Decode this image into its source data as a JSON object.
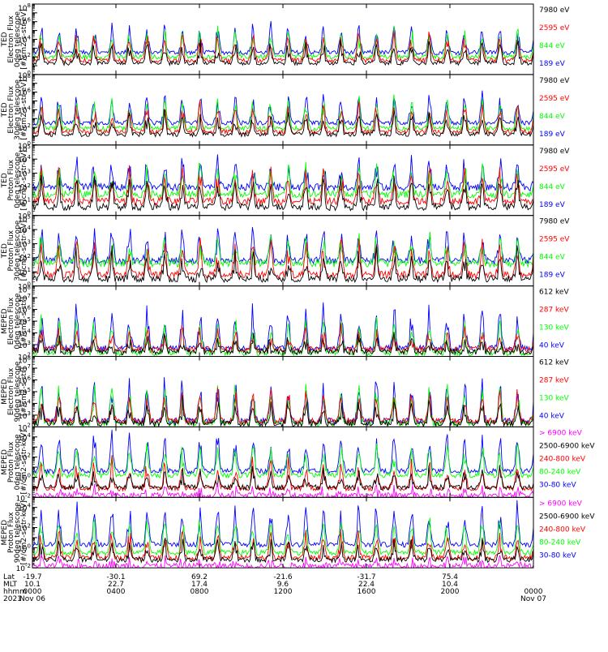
{
  "colors": {
    "black": "#000000",
    "red": "#ff0000",
    "green": "#00ff00",
    "blue": "#0000ff",
    "magenta": "#ff00ff"
  },
  "chart_data": [
    {
      "type": "line",
      "ylabel": [
        "TED",
        "Electron Flux",
        "0deg telescope",
        "[#/cm2-s-str-eV]"
      ],
      "yscale": "log",
      "ylim": [
        1,
        100000000
      ],
      "ytick_labels": [
        "10^0",
        "10^2",
        "10^4",
        "10^6"
      ],
      "ytick_exponents": [
        0,
        2,
        4,
        6
      ],
      "ytop": "10^8",
      "series": [
        {
          "name": "7980 eV",
          "color": "#000000"
        },
        {
          "name": "2595 eV",
          "color": "#ff0000"
        },
        {
          "name": "844 eV",
          "color": "#00ff00"
        },
        {
          "name": "189 eV",
          "color": "#0000ff"
        }
      ],
      "base_log": [
        1.3,
        1.6,
        2.0,
        2.5
      ],
      "peak_log": [
        3.5,
        4.5,
        5.0,
        5.5
      ]
    },
    {
      "type": "line",
      "ylabel": [
        "TED",
        "Electron Flux",
        "30deg telescope",
        "[#/cm2-s-str-eV]"
      ],
      "yscale": "log",
      "ylim": [
        1,
        100000000
      ],
      "ytick_labels": [
        "10^0",
        "10^2",
        "10^4",
        "10^6"
      ],
      "ytick_exponents": [
        0,
        2,
        4,
        6
      ],
      "ytop": "10^8",
      "series": [
        {
          "name": "7980 eV",
          "color": "#000000"
        },
        {
          "name": "2595 eV",
          "color": "#ff0000"
        },
        {
          "name": "844 eV",
          "color": "#00ff00"
        },
        {
          "name": "189 eV",
          "color": "#0000ff"
        }
      ],
      "base_log": [
        1.2,
        1.5,
        1.9,
        2.5
      ],
      "peak_log": [
        3.5,
        4.5,
        5.2,
        5.8
      ]
    },
    {
      "type": "line",
      "ylabel": [
        "TED",
        "Proton Flux",
        "0deg telescope",
        "[#/cm2-s-str-eV]"
      ],
      "yscale": "log",
      "ylim": [
        1,
        100000
      ],
      "ytick_labels": [
        "10^0",
        "10^1",
        "10^2",
        "10^3",
        "10^4"
      ],
      "ytick_exponents": [
        0,
        1,
        2,
        3,
        4
      ],
      "ytop": "10^5",
      "series": [
        {
          "name": "7980 eV",
          "color": "#000000"
        },
        {
          "name": "2595 eV",
          "color": "#ff0000"
        },
        {
          "name": "844 eV",
          "color": "#00ff00"
        },
        {
          "name": "189 eV",
          "color": "#0000ff"
        }
      ],
      "base_log": [
        0.6,
        1.0,
        1.5,
        2.0
      ],
      "peak_log": [
        2.5,
        3.2,
        3.5,
        3.8
      ]
    },
    {
      "type": "line",
      "ylabel": [
        "TED",
        "Proton Flux",
        "30deg telescope",
        "[#/cm2-s-str-eV]"
      ],
      "yscale": "log",
      "ylim": [
        1,
        100000
      ],
      "ytick_labels": [
        "10^0",
        "10^1",
        "10^2",
        "10^3",
        "10^4"
      ],
      "ytick_exponents": [
        0,
        1,
        2,
        3,
        4
      ],
      "ytop": "10^5",
      "series": [
        {
          "name": "7980 eV",
          "color": "#000000"
        },
        {
          "name": "2595 eV",
          "color": "#ff0000"
        },
        {
          "name": "844 eV",
          "color": "#00ff00"
        },
        {
          "name": "189 eV",
          "color": "#0000ff"
        }
      ],
      "base_log": [
        0.5,
        0.8,
        1.6,
        1.8
      ],
      "peak_log": [
        2.2,
        3.0,
        3.3,
        4.0
      ]
    },
    {
      "type": "line",
      "ylabel": [
        "MEPED",
        "Electron Flux",
        "0deg telescope",
        "[#/cm2-s-str]"
      ],
      "yscale": "log",
      "ylim": [
        100,
        100000000
      ],
      "ytick_labels": [
        "10^2",
        "10^3",
        "10^4",
        "10^5",
        "10^6",
        "10^7"
      ],
      "ytick_exponents": [
        2,
        3,
        4,
        5,
        6,
        7
      ],
      "ytop": "10^8",
      "series": [
        {
          "name": "612 keV",
          "color": "#000000"
        },
        {
          "name": "287 keV",
          "color": "#ff0000"
        },
        {
          "name": "130 keV",
          "color": "#00ff00"
        },
        {
          "name": "40 keV",
          "color": "#0000ff"
        }
      ],
      "base_log": [
        2.4,
        2.6,
        2.3,
        2.7
      ],
      "peak_log": [
        3.5,
        4.2,
        5.0,
        6.0
      ]
    },
    {
      "type": "line",
      "ylabel": [
        "MEPED",
        "Electron Flux",
        "90deg telescope",
        "[#/cm2-s-str]"
      ],
      "yscale": "log",
      "ylim": [
        100,
        100000000
      ],
      "ytick_labels": [
        "10^2",
        "10^3",
        "10^4",
        "10^5",
        "10^6",
        "10^7"
      ],
      "ytick_exponents": [
        2,
        3,
        4,
        5,
        6,
        7
      ],
      "ytop": "10^8",
      "series": [
        {
          "name": "612 keV",
          "color": "#000000"
        },
        {
          "name": "287 keV",
          "color": "#ff0000"
        },
        {
          "name": "130 keV",
          "color": "#00ff00"
        },
        {
          "name": "40 keV",
          "color": "#0000ff"
        }
      ],
      "base_log": [
        2.3,
        2.5,
        2.3,
        2.5
      ],
      "peak_log": [
        4.0,
        5.0,
        5.5,
        6.0
      ]
    },
    {
      "type": "line",
      "ylabel": [
        "MEPED",
        "Proton Flux",
        "0deg telescope",
        "[#/cm2-s-str-keV]"
      ],
      "yscale": "log",
      "ylim": [
        0.01,
        100000
      ],
      "ytick_labels": [
        "10^-2",
        "10^0",
        "10^2",
        "10^4"
      ],
      "ytick_exponents": [
        -2,
        0,
        2,
        4
      ],
      "ytop": "",
      "series": [
        {
          "name": "> 6900 keV",
          "color": "#ff00ff"
        },
        {
          "name": "2500-6900 keV",
          "color": "#000000"
        },
        {
          "name": "240-800 keV",
          "color": "#ff0000"
        },
        {
          "name": "80-240 keV",
          "color": "#00ff00"
        },
        {
          "name": "30-80 keV",
          "color": "#0000ff"
        }
      ],
      "base_log": [
        -1.8,
        -1.0,
        -1.1,
        0.2,
        0.6
      ],
      "peak_log": [
        -1.4,
        0.5,
        1.5,
        3.0,
        4.2
      ]
    },
    {
      "type": "line",
      "ylabel": [
        "MEPED",
        "Proton Flux",
        "90deg telescope",
        "[#/cm2-s-str-keV]"
      ],
      "yscale": "log",
      "ylim": [
        0.01,
        100000
      ],
      "ytick_labels": [
        "10^-2",
        "10^0",
        "10^2",
        "10^4"
      ],
      "ytick_exponents": [
        -2,
        0,
        2,
        4
      ],
      "ytop": "",
      "series": [
        {
          "name": "> 6900 keV",
          "color": "#ff00ff"
        },
        {
          "name": "2500-6900 keV",
          "color": "#000000"
        },
        {
          "name": "240-800 keV",
          "color": "#ff0000"
        },
        {
          "name": "80-240 keV",
          "color": "#00ff00"
        },
        {
          "name": "30-80 keV",
          "color": "#0000ff"
        }
      ],
      "base_log": [
        -1.8,
        -1.2,
        -1.0,
        -0.5,
        0.3
      ],
      "peak_log": [
        -1.4,
        0.5,
        1.5,
        3.0,
        4.2
      ]
    }
  ],
  "x_axis": {
    "row_labels": [
      "Lat",
      "MLT",
      "hhmm",
      "2021"
    ],
    "ticks": [
      {
        "lat": "-19.7",
        "mlt": "10.1",
        "hhmm": "0000",
        "date": "Nov 06"
      },
      {
        "lat": "-30.1",
        "mlt": "22.7",
        "hhmm": "0400",
        "date": ""
      },
      {
        "lat": "69.2",
        "mlt": "17.4",
        "hhmm": "0800",
        "date": ""
      },
      {
        "lat": "-21.6",
        "mlt": "9.6",
        "hhmm": "1200",
        "date": ""
      },
      {
        "lat": "-31.7",
        "mlt": "22.4",
        "hhmm": "1600",
        "date": ""
      },
      {
        "lat": "75.4",
        "mlt": "10.4",
        "hhmm": "2000",
        "date": ""
      },
      {
        "lat": "",
        "mlt": "",
        "hhmm": "0000",
        "date": "Nov 07"
      }
    ],
    "orbits_per_day": 14.2
  }
}
